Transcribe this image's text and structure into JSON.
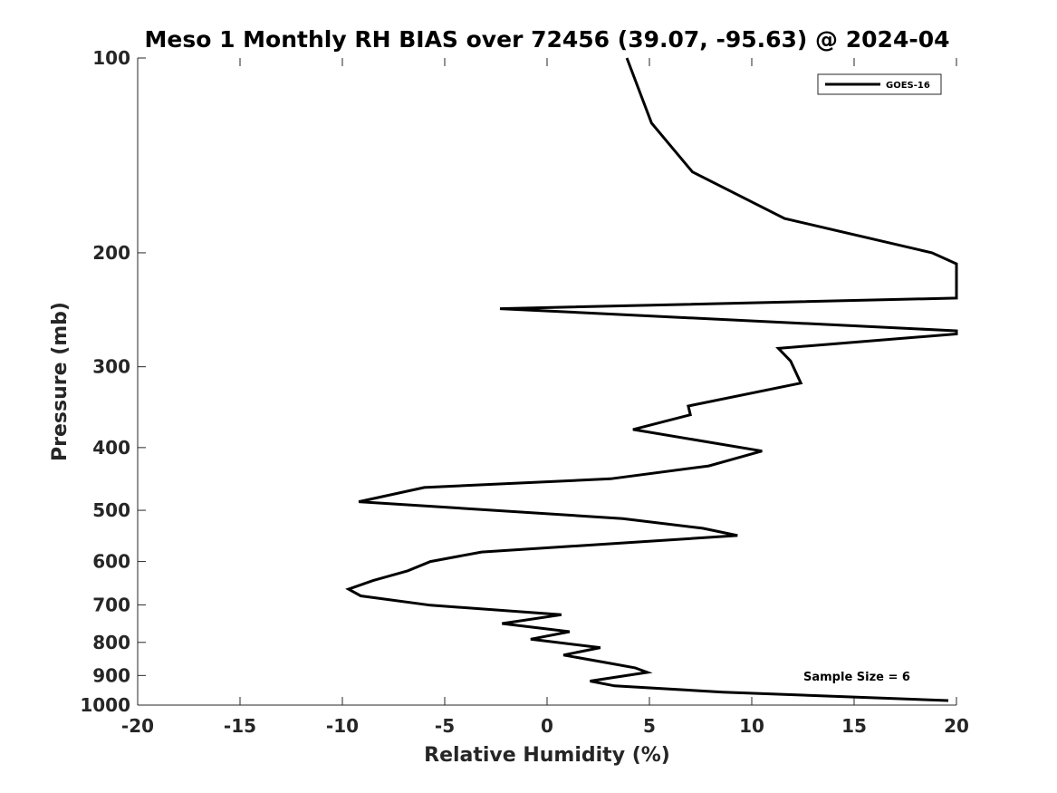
{
  "chart_data": {
    "type": "line",
    "title": "Meso 1 Monthly RH BIAS over 72456 (39.07, -95.63) @ 2024-04",
    "xlabel": "Relative Humidity (%)",
    "ylabel": "Pressure (mb)",
    "xlim": [
      -20,
      20
    ],
    "ylim": [
      100,
      1000
    ],
    "yscale": "log",
    "y_reversed": true,
    "xticks": [
      "-20",
      "-15",
      "-10",
      "-5",
      "0",
      "5",
      "10",
      "15",
      "20"
    ],
    "yticks": [
      "100",
      "200",
      "300",
      "400",
      "500",
      "600",
      "700",
      "800",
      "900",
      "1000"
    ],
    "grid": false,
    "legend_position": "top-right",
    "series": [
      {
        "name": "GOES-16",
        "color": "#000000",
        "points": [
          [
            3.9,
            100
          ],
          [
            5.1,
            126
          ],
          [
            7.1,
            150
          ],
          [
            11.6,
            177
          ],
          [
            18.8,
            200
          ],
          [
            20,
            208
          ],
          [
            20,
            235
          ],
          [
            -2.3,
            244
          ],
          [
            20,
            264
          ],
          [
            20,
            267
          ],
          [
            11.3,
            281
          ],
          [
            11.9,
            294
          ],
          [
            12.4,
            318
          ],
          [
            6.9,
            345
          ],
          [
            7.0,
            356
          ],
          [
            4.2,
            375
          ],
          [
            10.5,
            405
          ],
          [
            7.9,
            427
          ],
          [
            3.1,
            447
          ],
          [
            -6.0,
            461
          ],
          [
            -9.2,
            485
          ],
          [
            3.7,
            515
          ],
          [
            7.6,
            533
          ],
          [
            9.3,
            547
          ],
          [
            -3.2,
            580
          ],
          [
            -5.7,
            600
          ],
          [
            -6.8,
            620
          ],
          [
            -8.5,
            642
          ],
          [
            -9.7,
            662
          ],
          [
            -9.1,
            678
          ],
          [
            -5.7,
            701
          ],
          [
            0.7,
            725
          ],
          [
            -2.2,
            748
          ],
          [
            1.1,
            770
          ],
          [
            -0.8,
            791
          ],
          [
            2.6,
            815
          ],
          [
            0.8,
            837
          ],
          [
            3.1,
            862
          ],
          [
            4.3,
            876
          ],
          [
            4.9,
            890
          ],
          [
            2.1,
            918
          ],
          [
            3.3,
            934
          ],
          [
            8.6,
            955
          ],
          [
            19.6,
            984
          ]
        ]
      }
    ],
    "annotations": [
      {
        "text": "Sample Size = 6"
      }
    ]
  }
}
